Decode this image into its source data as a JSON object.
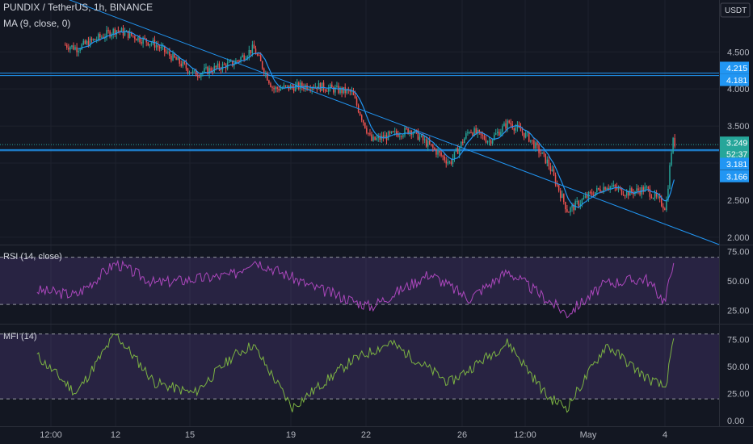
{
  "header": {
    "symbol_line": "PUNDIX / TetherUS, 1h, BINANCE",
    "ma_label": "MA (9, close, 0)"
  },
  "currency_label": "USDT",
  "colors": {
    "background": "#131722",
    "grid": "#1e222d",
    "up_candle": "#26a69a",
    "down_candle": "#ef5350",
    "ma_line": "#2196f3",
    "trend_line": "#2196f3",
    "rsi_line": "#ab47bc",
    "mfi_line": "#7cb342",
    "band_fill": "#7e57c2",
    "price_badge": "#2196f3",
    "last_price_badge": "#26a69a"
  },
  "chart_data": [
    {
      "type": "candlestick",
      "pane": "price",
      "title": "PUNDIX / TetherUS, 1h, BINANCE",
      "overlay": "MA (9, close, 0)",
      "y_ticks": [
        "4.500",
        "4.000",
        "3.500",
        "2.500",
        "2.000"
      ],
      "y_range": [
        1.9,
        5.2
      ],
      "x_ticks": [
        "12:00",
        "12",
        "15",
        "19",
        "22",
        "26",
        "12:00",
        "May",
        "4"
      ],
      "price_badges": [
        "4.215",
        "4.181",
        "3.249",
        "52:37",
        "3.181",
        "3.166"
      ],
      "horizontal_levels": [
        4.215,
        4.181,
        3.249,
        3.181,
        3.166
      ],
      "trend_line": {
        "from": {
          "x": "Apr 8 20:00",
          "y": 5.6
        },
        "to": {
          "x": "Apr 27 09:00",
          "y": 1.9
        }
      },
      "key_points": [
        {
          "x": "Apr 9 12:00",
          "y": 4.9
        },
        {
          "x": "Apr 10 00:00",
          "y": 4.7
        },
        {
          "x": "Apr 11 00:00",
          "y": 4.55
        },
        {
          "x": "Apr 12 00:00",
          "y": 4.8
        },
        {
          "x": "Apr 13 00:00",
          "y": 4.6
        },
        {
          "x": "Apr 14 00:00",
          "y": 4.2
        },
        {
          "x": "Apr 15 00:00",
          "y": 4.35
        },
        {
          "x": "Apr 15 12:00",
          "y": 4.55
        },
        {
          "x": "Apr 16 00:00",
          "y": 4.0
        },
        {
          "x": "Apr 17 00:00",
          "y": 4.05
        },
        {
          "x": "Apr 18 00:00",
          "y": 3.95
        },
        {
          "x": "Apr 18 12:00",
          "y": 3.3
        },
        {
          "x": "Apr 19 12:00",
          "y": 3.45
        },
        {
          "x": "Apr 20 12:00",
          "y": 3.0
        },
        {
          "x": "Apr 21 00:00",
          "y": 3.45
        },
        {
          "x": "Apr 21 12:00",
          "y": 3.3
        },
        {
          "x": "Apr 22 00:00",
          "y": 3.55
        },
        {
          "x": "Apr 22 12:00",
          "y": 3.35
        },
        {
          "x": "Apr 23 00:00",
          "y": 3.0
        },
        {
          "x": "Apr 23 12:00",
          "y": 2.35
        },
        {
          "x": "Apr 24 00:00",
          "y": 2.55
        },
        {
          "x": "Apr 24 12:00",
          "y": 2.7
        },
        {
          "x": "Apr 25 00:00",
          "y": 2.6
        },
        {
          "x": "Apr 25 12:00",
          "y": 2.65
        },
        {
          "x": "Apr 26 00:00",
          "y": 2.4
        },
        {
          "x": "Apr 26 04:00",
          "y": 3.3
        },
        {
          "x": "Apr 26 06:00",
          "y": 3.25
        }
      ]
    },
    {
      "type": "line",
      "pane": "rsi",
      "title": "RSI (14, close)",
      "y_ticks": [
        "75.00",
        "50.00",
        "25.00"
      ],
      "y_range": [
        15,
        80
      ],
      "band": [
        30,
        70
      ],
      "key_points": [
        {
          "x": "Apr 10 00:00",
          "y": 42
        },
        {
          "x": "Apr 11 00:00",
          "y": 38
        },
        {
          "x": "Apr 12 00:00",
          "y": 65
        },
        {
          "x": "Apr 13 00:00",
          "y": 48
        },
        {
          "x": "Apr 15 00:00",
          "y": 55
        },
        {
          "x": "Apr 15 12:00",
          "y": 68
        },
        {
          "x": "Apr 17 00:00",
          "y": 45
        },
        {
          "x": "Apr 18 12:00",
          "y": 28
        },
        {
          "x": "Apr 20 00:00",
          "y": 56
        },
        {
          "x": "Apr 21 00:00",
          "y": 35
        },
        {
          "x": "Apr 22 00:00",
          "y": 58
        },
        {
          "x": "Apr 23 12:00",
          "y": 22
        },
        {
          "x": "Apr 24 12:00",
          "y": 48
        },
        {
          "x": "Apr 25 12:00",
          "y": 52
        },
        {
          "x": "Apr 26 00:00",
          "y": 32
        },
        {
          "x": "Apr 26 06:00",
          "y": 76
        }
      ]
    },
    {
      "type": "line",
      "pane": "mfi",
      "title": "MFI (14)",
      "y_ticks": [
        "75.00",
        "50.00",
        "25.00",
        "0.00"
      ],
      "y_range": [
        0,
        85
      ],
      "band": [
        20,
        80
      ],
      "key_points": [
        {
          "x": "Apr 10 00:00",
          "y": 60
        },
        {
          "x": "Apr 11 00:00",
          "y": 25
        },
        {
          "x": "Apr 12 00:00",
          "y": 80
        },
        {
          "x": "Apr 13 00:00",
          "y": 35
        },
        {
          "x": "Apr 14 00:00",
          "y": 25
        },
        {
          "x": "Apr 15 00:00",
          "y": 60
        },
        {
          "x": "Apr 15 12:00",
          "y": 70
        },
        {
          "x": "Apr 16 12:00",
          "y": 12
        },
        {
          "x": "Apr 18 00:00",
          "y": 55
        },
        {
          "x": "Apr 19 00:00",
          "y": 72
        },
        {
          "x": "Apr 20 12:00",
          "y": 35
        },
        {
          "x": "Apr 22 00:00",
          "y": 72
        },
        {
          "x": "Apr 23 00:00",
          "y": 22
        },
        {
          "x": "Apr 23 12:00",
          "y": 12
        },
        {
          "x": "Apr 24 12:00",
          "y": 70
        },
        {
          "x": "Apr 25 12:00",
          "y": 40
        },
        {
          "x": "Apr 26 00:00",
          "y": 30
        },
        {
          "x": "Apr 26 06:00",
          "y": 80
        }
      ]
    }
  ]
}
